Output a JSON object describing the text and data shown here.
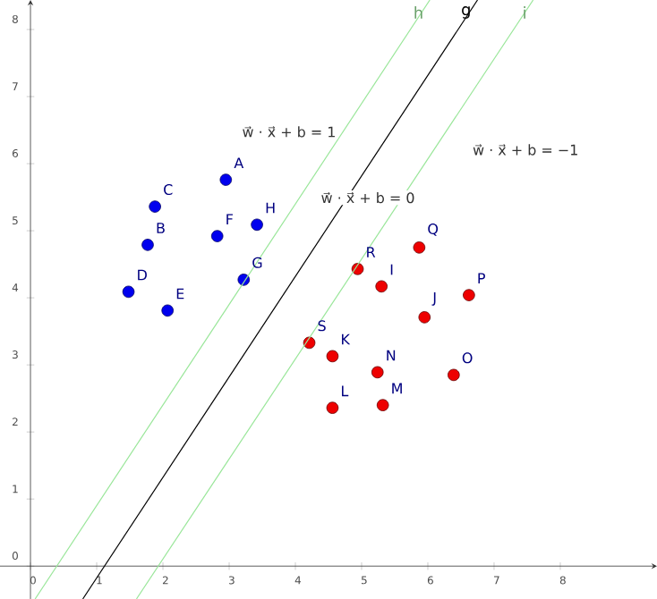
{
  "chart_data": {
    "type": "scatter",
    "xlim": [
      -0.46,
      9.46
    ],
    "ylim": [
      -0.49,
      8.44
    ],
    "xticks": [
      0,
      1,
      2,
      3,
      4,
      5,
      6,
      7,
      8
    ],
    "yticks": [
      0,
      1,
      2,
      3,
      4,
      5,
      6,
      7,
      8
    ],
    "marker": "circle",
    "series": [
      {
        "color": "#0000ee",
        "x": [
          2.95,
          1.77,
          1.88,
          1.48,
          2.07,
          2.82,
          3.22,
          3.42
        ],
        "values": [
          5.76,
          4.79,
          5.36,
          4.09,
          3.81,
          4.92,
          4.27,
          5.09
        ]
      },
      {
        "color": "#ee0000",
        "x": [
          5.3,
          5.95,
          4.56,
          4.56,
          5.32,
          5.24,
          6.39,
          6.62,
          5.87,
          4.94,
          4.21
        ],
        "values": [
          4.17,
          3.71,
          3.13,
          2.36,
          2.4,
          2.89,
          2.85,
          4.04,
          4.75,
          4.43,
          3.33
        ]
      },
      {
        "type": "line",
        "marker": "none",
        "name": "g",
        "color": "#000000",
        "x": [
          0.79,
          6.75
        ],
        "values": [
          -0.49,
          8.44
        ]
      },
      {
        "type": "line",
        "marker": "none",
        "name": "h",
        "color": "#99e699",
        "x": [
          0.07,
          6.03
        ],
        "values": [
          -0.49,
          8.44
        ]
      },
      {
        "type": "line",
        "marker": "none",
        "name": "i",
        "color": "#99e699",
        "x": [
          1.6,
          7.59
        ],
        "values": [
          -0.49,
          8.44
        ]
      }
    ],
    "annotations": [
      {
        "text": "A",
        "x": 2.95,
        "y": 5.76
      },
      {
        "text": "B",
        "x": 1.77,
        "y": 4.79
      },
      {
        "text": "C",
        "x": 1.88,
        "y": 5.36
      },
      {
        "text": "D",
        "x": 1.48,
        "y": 4.09
      },
      {
        "text": "E",
        "x": 2.07,
        "y": 3.81
      },
      {
        "text": "F",
        "x": 2.82,
        "y": 4.92
      },
      {
        "text": "G",
        "x": 3.22,
        "y": 4.27
      },
      {
        "text": "H",
        "x": 3.42,
        "y": 5.09
      },
      {
        "text": "I",
        "x": 5.3,
        "y": 4.17
      },
      {
        "text": "J",
        "x": 5.95,
        "y": 3.71
      },
      {
        "text": "K",
        "x": 4.56,
        "y": 3.13
      },
      {
        "text": "L",
        "x": 4.56,
        "y": 2.36
      },
      {
        "text": "M",
        "x": 5.32,
        "y": 2.4
      },
      {
        "text": "N",
        "x": 5.24,
        "y": 2.89
      },
      {
        "text": "O",
        "x": 6.39,
        "y": 2.85
      },
      {
        "text": "P",
        "x": 6.62,
        "y": 4.04
      },
      {
        "text": "Q",
        "x": 5.87,
        "y": 4.75
      },
      {
        "text": "R",
        "x": 4.94,
        "y": 4.43
      },
      {
        "text": "S",
        "x": 4.21,
        "y": 3.33
      },
      "w⃗ · x⃗ + b = 1",
      "w⃗ · x⃗ + b = 0",
      "w⃗ · x⃗ + b = −1"
    ]
  }
}
